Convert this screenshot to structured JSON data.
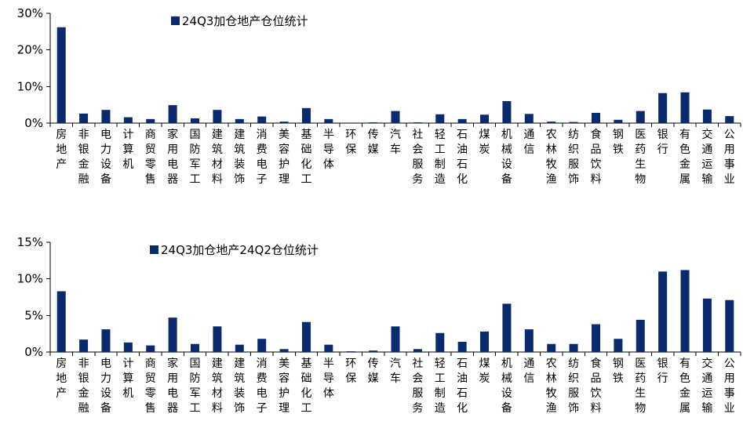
{
  "colors": {
    "bar": "#0a2a6e",
    "axis": "#000000"
  },
  "chart_data": [
    {
      "type": "bar",
      "legend": "24Q3加仓地产仓位统计",
      "categories": [
        "房地产",
        "非银金融",
        "电力设备",
        "计算机",
        "商贸零售",
        "家用电器",
        "国防军工",
        "建筑材料",
        "建筑装饰",
        "消费电子",
        "美容护理",
        "基础化工",
        "半导体",
        "环保",
        "传媒",
        "汽车",
        "社会服务",
        "轻工制造",
        "石油石化",
        "煤炭",
        "机械设备",
        "通信",
        "农林牧渔",
        "纺织服饰",
        "食品饮料",
        "钢铁",
        "医药生物",
        "银行",
        "有色金属",
        "交通运输",
        "公用事业"
      ],
      "values": [
        26.2,
        2.6,
        3.6,
        1.6,
        1.1,
        4.9,
        1.3,
        3.6,
        1.1,
        1.8,
        0.4,
        4.1,
        1.1,
        0.1,
        0.2,
        3.3,
        0.2,
        2.4,
        1.1,
        2.3,
        6.0,
        2.5,
        0.4,
        0.3,
        2.8,
        0.9,
        3.3,
        8.2,
        8.4,
        3.7,
        1.9
      ],
      "yticks": [
        "0%",
        "10%",
        "20%",
        "30%"
      ],
      "ylim": [
        0,
        30
      ]
    },
    {
      "type": "bar",
      "legend": "24Q3加仓地产24Q2仓位统计",
      "categories": [
        "房地产",
        "非银金融",
        "电力设备",
        "计算机",
        "商贸零售",
        "家用电器",
        "国防军工",
        "建筑材料",
        "建筑装饰",
        "消费电子",
        "美容护理",
        "基础化工",
        "半导体",
        "环保",
        "传媒",
        "汽车",
        "社会服务",
        "轻工制造",
        "石油石化",
        "煤炭",
        "机械设备",
        "通信",
        "农林牧渔",
        "纺织服饰",
        "食品饮料",
        "钢铁",
        "医药生物",
        "银行",
        "有色金属",
        "交通运输",
        "公用事业"
      ],
      "values": [
        8.3,
        1.7,
        3.1,
        1.3,
        0.9,
        4.7,
        1.1,
        3.5,
        1.0,
        1.8,
        0.4,
        4.1,
        1.0,
        0.1,
        0.2,
        3.5,
        0.4,
        2.6,
        1.4,
        2.8,
        6.6,
        3.1,
        1.1,
        1.1,
        3.8,
        1.8,
        4.4,
        11.0,
        11.2,
        7.3,
        7.1
      ],
      "yticks": [
        "0%",
        "5%",
        "10%",
        "15%"
      ],
      "ylim": [
        0,
        15
      ]
    }
  ]
}
